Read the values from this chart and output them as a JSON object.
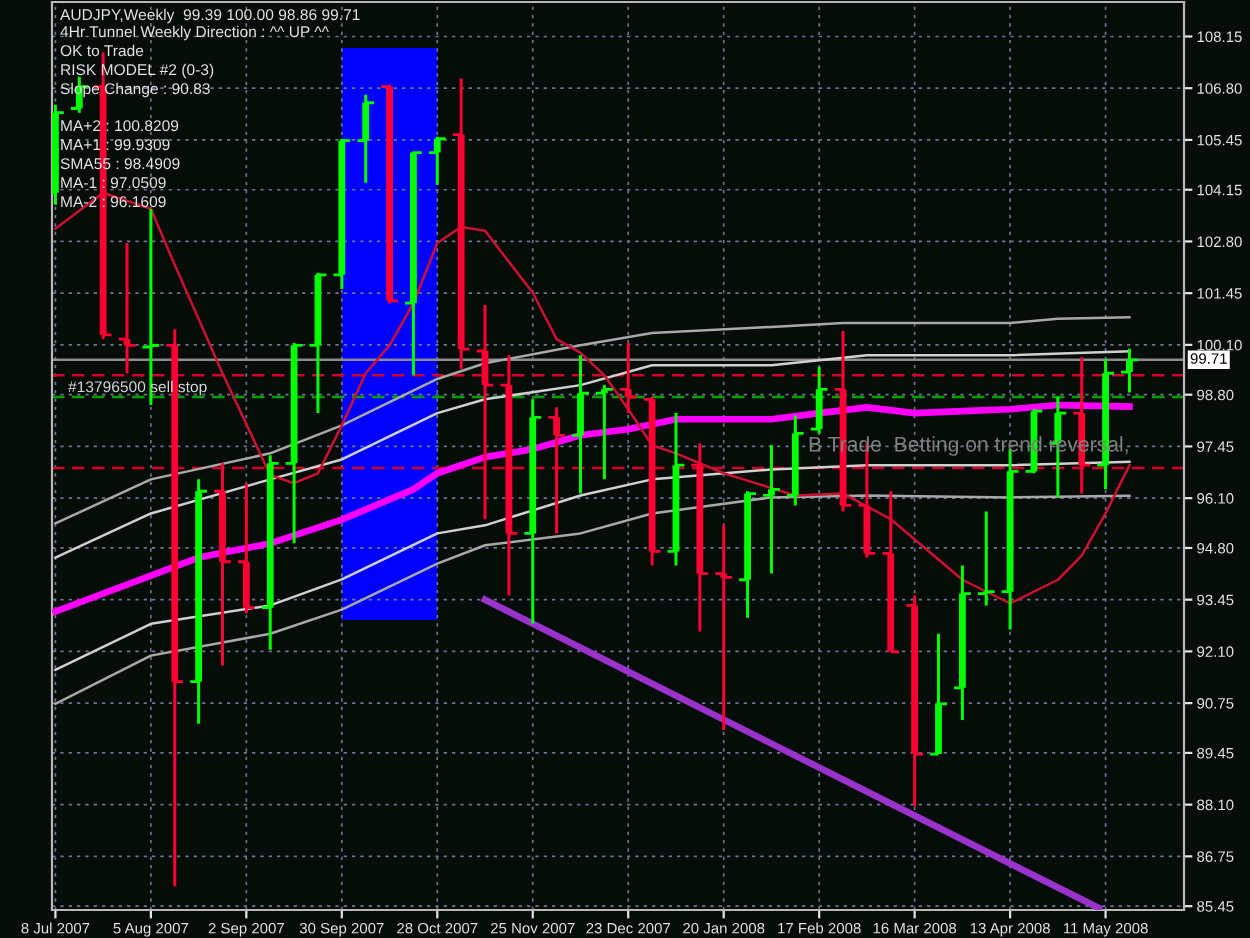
{
  "chart_data": {
    "type": "candlestick",
    "title": "AUDJPY,Weekly  99.39 100.00 98.86 99.71",
    "x": [
      "2007-07-08",
      "2007-07-15",
      "2007-07-22",
      "2007-07-29",
      "2007-08-05",
      "2007-08-12",
      "2007-08-19",
      "2007-08-26",
      "2007-09-02",
      "2007-09-09",
      "2007-09-16",
      "2007-09-23",
      "2007-09-30",
      "2007-10-07",
      "2007-10-14",
      "2007-10-21",
      "2007-10-28",
      "2007-11-04",
      "2007-11-11",
      "2007-11-18",
      "2007-11-25",
      "2007-12-02",
      "2007-12-09",
      "2007-12-16",
      "2007-12-23",
      "2007-12-30",
      "2008-01-06",
      "2008-01-13",
      "2008-01-20",
      "2008-01-27",
      "2008-02-03",
      "2008-02-10",
      "2008-02-17",
      "2008-02-24",
      "2008-03-02",
      "2008-03-09",
      "2008-03-16",
      "2008-03-23",
      "2008-03-30",
      "2008-04-06",
      "2008-04-13",
      "2008-04-20",
      "2008-04-27",
      "2008-05-04",
      "2008-05-11",
      "2008-05-18"
    ],
    "ohlc": [
      [
        104.07,
        106.37,
        103.76,
        106.16
      ],
      [
        106.27,
        107.1,
        106.16,
        106.84
      ],
      [
        106.84,
        107.73,
        100.25,
        100.36
      ],
      [
        100.25,
        102.76,
        99.36,
        100.09
      ],
      [
        100.04,
        103.65,
        98.53,
        100.09
      ],
      [
        100.09,
        100.51,
        85.97,
        91.31
      ],
      [
        91.31,
        96.59,
        90.21,
        96.28
      ],
      [
        96.28,
        97.01,
        91.73,
        94.44
      ],
      [
        94.44,
        96.49,
        93.09,
        93.24
      ],
      [
        93.24,
        97.22,
        92.14,
        97.01
      ],
      [
        97.01,
        100.15,
        94.92,
        100.09
      ],
      [
        100.09,
        101.98,
        98.32,
        101.93
      ],
      [
        101.93,
        105.48,
        101.56,
        105.43
      ],
      [
        105.43,
        106.63,
        104.33,
        106.42
      ],
      [
        106.84,
        106.89,
        101.19,
        101.25
      ],
      [
        101.19,
        105.15,
        99.31,
        105.12
      ],
      [
        105.12,
        105.53,
        104.28,
        105.48
      ],
      [
        105.59,
        107.05,
        99.47,
        99.99
      ],
      [
        99.94,
        101.14,
        95.55,
        99.05
      ],
      [
        99.05,
        99.83,
        93.56,
        95.18
      ],
      [
        95.18,
        98.68,
        92.82,
        98.21
      ],
      [
        98.21,
        98.47,
        95.18,
        97.74
      ],
      [
        97.74,
        99.83,
        96.22,
        98.84
      ],
      [
        98.84,
        99.05,
        96.59,
        98.94
      ],
      [
        98.94,
        100.15,
        98.32,
        98.74
      ],
      [
        98.68,
        98.74,
        94.34,
        94.71
      ],
      [
        94.71,
        98.32,
        94.34,
        96.96
      ],
      [
        96.96,
        97.53,
        92.62,
        94.13
      ],
      [
        94.13,
        95.39,
        90.05,
        94.03
      ],
      [
        93.97,
        96.28,
        92.98,
        96.22
      ],
      [
        96.17,
        97.48,
        94.13,
        96.33
      ],
      [
        96.17,
        98.26,
        95.91,
        97.79
      ],
      [
        97.9,
        99.52,
        97.79,
        98.94
      ],
      [
        98.94,
        100.46,
        95.75,
        95.91
      ],
      [
        95.91,
        97.53,
        94.55,
        94.66
      ],
      [
        94.66,
        96.28,
        92.09,
        92.09
      ],
      [
        93.3,
        93.56,
        88.06,
        89.42
      ],
      [
        89.42,
        92.56,
        89.42,
        90.73
      ],
      [
        91.15,
        94.34,
        90.31,
        93.61
      ],
      [
        93.61,
        95.75,
        93.3,
        93.66
      ],
      [
        93.66,
        97.38,
        92.67,
        96.8
      ],
      [
        96.8,
        98.42,
        96.75,
        98.37
      ],
      [
        97.53,
        98.74,
        96.12,
        98.32
      ],
      [
        98.32,
        99.78,
        96.22,
        96.96
      ],
      [
        96.96,
        99.73,
        96.33,
        99.36
      ],
      [
        99.39,
        100.0,
        98.86,
        99.71
      ]
    ],
    "colors": [
      "#00ff00",
      "#00ff00",
      "#ff0033",
      "#ff0033",
      "#00ff00",
      "#ff0033",
      "#00ff00",
      "#ff0033",
      "#ff0033",
      "#00ff00",
      "#00ff00",
      "#00ff00",
      "#00ff00",
      "#00ff00",
      "#ff0033",
      "#00ff00",
      "#00ff00",
      "#ff0033",
      "#ff0033",
      "#ff0033",
      "#00ff00",
      "#ff0033",
      "#00ff00",
      "#00ff00",
      "#ff0033",
      "#ff0033",
      "#00ff00",
      "#ff0033",
      "#ff0033",
      "#00ff00",
      "#00ff00",
      "#00ff00",
      "#00ff00",
      "#ff0033",
      "#ff0033",
      "#ff0033",
      "#ff0033",
      "#00ff00",
      "#00ff00",
      "#00ff00",
      "#00ff00",
      "#00ff00",
      "#00ff00",
      "#ff0033",
      "#00ff00",
      "#00ff00"
    ],
    "series": [
      {
        "type": "line",
        "color": "#ff00ff",
        "x": [
          "2007-07-08",
          "2007-08-05",
          "2007-08-19",
          "2007-09-09",
          "2007-09-30",
          "2007-10-21",
          "2007-10-28",
          "2007-11-11",
          "2007-11-25",
          "2007-12-09",
          "2007-12-23",
          "2008-01-06",
          "2008-02-03",
          "2008-02-17",
          "2008-03-02",
          "2008-03-16",
          "2008-03-30",
          "2008-04-13",
          "2008-04-27",
          "2008-05-18"
        ],
        "values": [
          93.14,
          94.08,
          94.55,
          94.92,
          95.54,
          96.33,
          96.75,
          97.17,
          97.38,
          97.74,
          97.9,
          98.16,
          98.16,
          98.32,
          98.47,
          98.32,
          98.37,
          98.42,
          98.53,
          98.49
        ]
      },
      {
        "type": "line",
        "color": "#a8a8a8",
        "x": [
          "2007-07-08",
          "2007-08-05",
          "2007-09-09",
          "2007-09-30",
          "2007-10-28",
          "2007-11-11",
          "2007-12-09",
          "2007-12-30",
          "2008-02-03",
          "2008-02-24",
          "2008-04-13",
          "2008-04-27",
          "2008-05-18"
        ],
        "values": [
          95.44,
          96.59,
          97.27,
          98.0,
          99.21,
          99.62,
          100.09,
          100.41,
          100.57,
          100.67,
          100.67,
          100.78,
          100.82
        ]
      },
      {
        "type": "line",
        "color": "#d0d0d0",
        "x": [
          "2007-07-08",
          "2007-08-05",
          "2007-09-09",
          "2007-09-30",
          "2007-10-28",
          "2007-11-11",
          "2007-12-09",
          "2007-12-30",
          "2008-02-03",
          "2008-03-02",
          "2008-04-13",
          "2008-05-18"
        ],
        "values": [
          94.55,
          95.7,
          96.59,
          97.11,
          98.32,
          98.68,
          99.05,
          99.57,
          99.57,
          99.83,
          99.83,
          99.93
        ]
      },
      {
        "type": "line",
        "color": "#d0d0d0",
        "x": [
          "2007-07-08",
          "2007-08-05",
          "2007-09-09",
          "2007-09-30",
          "2007-10-28",
          "2007-11-11",
          "2007-12-09",
          "2007-12-30",
          "2008-02-03",
          "2008-03-02",
          "2008-04-13",
          "2008-05-18"
        ],
        "values": [
          91.62,
          92.82,
          93.3,
          93.98,
          95.18,
          95.39,
          96.17,
          96.59,
          96.85,
          96.96,
          96.96,
          97.05
        ]
      },
      {
        "type": "line",
        "color": "#a8a8a8",
        "x": [
          "2007-07-08",
          "2007-08-05",
          "2007-09-09",
          "2007-09-30",
          "2007-10-28",
          "2007-11-11",
          "2007-12-09",
          "2007-12-30",
          "2008-02-03",
          "2008-03-02",
          "2008-04-13",
          "2008-05-18"
        ],
        "values": [
          90.73,
          91.99,
          92.56,
          93.19,
          94.39,
          94.87,
          95.18,
          95.7,
          96.12,
          96.17,
          96.12,
          96.16
        ]
      },
      {
        "type": "line",
        "color": "#cc1133",
        "x": [
          "2007-07-08",
          "2007-07-22",
          "2007-08-05",
          "2007-08-12",
          "2007-08-26",
          "2007-09-09",
          "2007-09-16",
          "2007-09-23",
          "2007-09-30",
          "2007-10-07",
          "2007-10-14",
          "2007-10-21",
          "2007-10-28",
          "2007-11-04",
          "2007-11-11",
          "2007-11-25",
          "2007-12-02",
          "2007-12-09",
          "2007-12-16",
          "2007-12-23",
          "2007-12-30",
          "2008-01-06",
          "2008-01-20",
          "2008-02-10",
          "2008-02-24",
          "2008-03-09",
          "2008-03-23",
          "2008-03-30",
          "2008-04-13",
          "2008-04-27",
          "2008-05-04",
          "2008-05-11",
          "2008-05-18"
        ],
        "values": [
          103.13,
          104.07,
          103.65,
          102.19,
          99.36,
          96.7,
          96.49,
          96.75,
          98.0,
          99.36,
          100.09,
          101.19,
          102.76,
          103.18,
          103.08,
          101.46,
          100.25,
          99.89,
          99.31,
          98.42,
          97.48,
          97.27,
          96.75,
          96.17,
          96.22,
          95.55,
          94.5,
          93.97,
          93.35,
          93.97,
          94.6,
          95.7,
          96.96
        ]
      },
      {
        "type": "line",
        "color": "#9933cc",
        "x": [
          "2007-11-11",
          "2008-05-09"
        ],
        "values": [
          93.45,
          85.4
        ]
      }
    ],
    "bands": [
      {
        "axis": "x",
        "from": "2007-09-30",
        "to": "2007-10-28",
        "color": "#0000ff"
      }
    ],
    "xlim": [
      "2007-07-07",
      "2008-06-03"
    ],
    "xticks": [
      {
        "value": "2007-07-08",
        "label": "8 Jul 2007"
      },
      {
        "value": "2007-08-05",
        "label": "5 Aug 2007"
      },
      {
        "value": "2007-09-02",
        "label": "2 Sep 2007"
      },
      {
        "value": "2007-09-30",
        "label": "30 Sep 2007"
      },
      {
        "value": "2007-10-28",
        "label": "28 Oct 2007"
      },
      {
        "value": "2007-11-25",
        "label": "25 Nov 2007"
      },
      {
        "value": "2007-12-23",
        "label": "23 Dec 2007"
      },
      {
        "value": "2008-01-20",
        "label": "20 Jan 2008"
      },
      {
        "value": "2008-02-17",
        "label": "17 Feb 2008"
      },
      {
        "value": "2008-03-16",
        "label": "16 Mar 2008"
      },
      {
        "value": "2008-04-13",
        "label": "13 Apr 2008"
      },
      {
        "value": "2008-05-11",
        "label": "11 May 2008"
      }
    ],
    "ylim": [
      85.35,
      109.05
    ],
    "yticks": [
      108.15,
      {
        "value": 106.8,
        "label": "106.80"
      },
      105.45,
      104.15,
      {
        "value": 102.8,
        "label": "102.80"
      },
      101.45,
      {
        "value": 100.1,
        "label": "100.10"
      },
      {
        "value": 98.8,
        "label": "98.80"
      },
      97.45,
      {
        "value": 96.1,
        "label": "96.10"
      },
      {
        "value": 94.8,
        "label": "94.80"
      },
      93.45,
      {
        "value": 92.1,
        "label": "92.10"
      },
      90.75,
      89.45,
      {
        "value": 88.1,
        "label": "88.10"
      },
      86.75,
      85.45
    ],
    "ref_lines": [
      {
        "axis": "y",
        "value": 99.71,
        "label": "99.71",
        "color": "#8c8c8c",
        "line_style": "solid"
      },
      {
        "axis": "y",
        "value": 99.31,
        "color": "#d0002a",
        "line_style": "dashed"
      },
      {
        "axis": "y",
        "value": 98.74,
        "label": "#13796500 sell stop",
        "color": "#00a000",
        "line_style": "dashed"
      },
      {
        "axis": "y",
        "value": 96.89,
        "color": "#d0002a",
        "line_style": "dashed"
      }
    ],
    "annotations": [
      "4Hr Tunnel Weekly Direction : ^^ UP ^^",
      "OK to Trade",
      "RISK MODEL #2 (0-3)",
      "Slope Change : 90.83",
      "MA+2 : 100.8209",
      "MA+1 : 99.9309",
      "SMA55 : 98.4909",
      "MA-1 : 97.0509",
      "MA-2 : 96.1609",
      "B Trade  Betting on trend reversal,"
    ],
    "grid": true
  }
}
